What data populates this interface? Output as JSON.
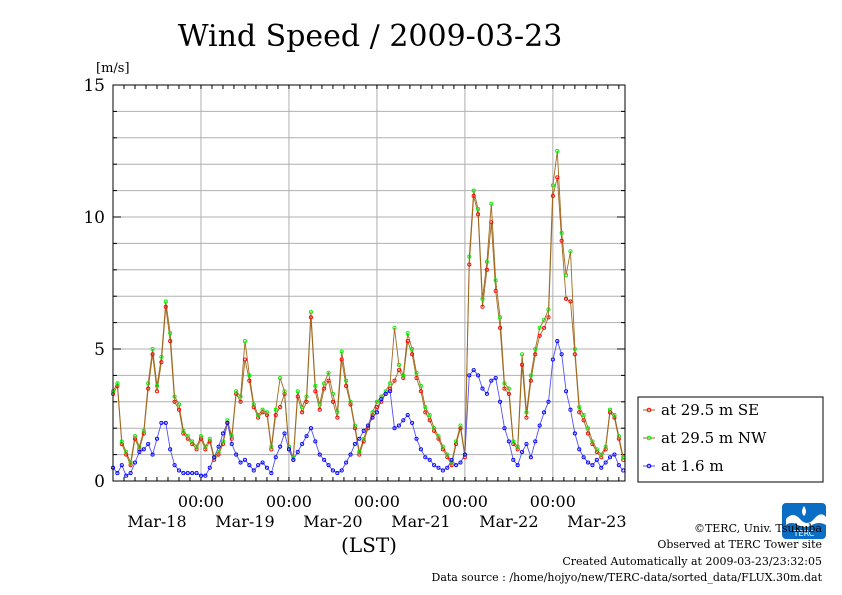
{
  "chart_data": {
    "type": "line",
    "title": "Wind Speed / 2009-03-23",
    "ylabel": "[m/s]",
    "xlabel": "(LST)",
    "ylim": [
      0,
      15
    ],
    "yticks": [
      0,
      5,
      10,
      15
    ],
    "xlim": [
      0,
      5.82
    ],
    "x_tick_time": "00:00",
    "x_tick_dates": [
      "Mar-18",
      "Mar-19",
      "Mar-20",
      "Mar-21",
      "Mar-22",
      "Mar-23"
    ],
    "grid": true,
    "legend_position": "right",
    "series": [
      {
        "name": "at 29.5 m SE",
        "color": "#ff0000",
        "line_color": "#a06a20",
        "x": [
          0,
          0.05,
          0.1,
          0.15,
          0.2,
          0.25,
          0.3,
          0.35,
          0.4,
          0.45,
          0.5,
          0.55,
          0.6,
          0.65,
          0.7,
          0.75,
          0.8,
          0.85,
          0.9,
          0.95,
          1.0,
          1.05,
          1.1,
          1.15,
          1.2,
          1.25,
          1.3,
          1.35,
          1.4,
          1.45,
          1.5,
          1.55,
          1.6,
          1.65,
          1.7,
          1.75,
          1.8,
          1.85,
          1.9,
          1.95,
          2.0,
          2.05,
          2.1,
          2.15,
          2.2,
          2.25,
          2.3,
          2.35,
          2.4,
          2.45,
          2.5,
          2.55,
          2.6,
          2.65,
          2.7,
          2.75,
          2.8,
          2.85,
          2.9,
          2.95,
          3.0,
          3.05,
          3.1,
          3.15,
          3.2,
          3.25,
          3.3,
          3.35,
          3.4,
          3.45,
          3.5,
          3.55,
          3.6,
          3.65,
          3.7,
          3.75,
          3.8,
          3.85,
          3.9,
          3.95,
          4.0,
          4.05,
          4.1,
          4.15,
          4.2,
          4.25,
          4.3,
          4.35,
          4.4,
          4.45,
          4.5,
          4.55,
          4.6,
          4.65,
          4.7,
          4.75,
          4.8,
          4.85,
          4.9,
          4.95,
          5.0,
          5.05,
          5.1,
          5.15,
          5.2,
          5.25,
          5.3,
          5.35,
          5.4,
          5.45,
          5.5,
          5.55,
          5.6,
          5.65,
          5.7,
          5.75,
          5.8
        ],
        "y": [
          3.3,
          3.6,
          1.4,
          1.0,
          0.6,
          1.6,
          1.2,
          1.8,
          3.5,
          4.8,
          3.4,
          4.5,
          6.6,
          5.3,
          3.0,
          2.7,
          1.8,
          1.6,
          1.4,
          1.2,
          1.6,
          1.2,
          1.5,
          0.8,
          1.0,
          1.4,
          2.2,
          1.6,
          3.3,
          3.0,
          4.6,
          3.8,
          2.8,
          2.4,
          2.6,
          2.5,
          1.2,
          2.5,
          2.8,
          3.3,
          1.2,
          0.8,
          3.2,
          2.6,
          3.0,
          6.2,
          3.4,
          2.7,
          3.5,
          3.8,
          3.0,
          2.4,
          4.6,
          3.6,
          2.9,
          2.0,
          1.0,
          1.5,
          2.0,
          2.5,
          2.8,
          3.0,
          3.3,
          3.5,
          3.8,
          4.2,
          3.9,
          5.3,
          4.8,
          3.9,
          3.4,
          2.6,
          2.3,
          1.9,
          1.6,
          1.2,
          0.9,
          0.6,
          1.4,
          2.0,
          0.9,
          8.2,
          10.8,
          10.1,
          6.6,
          8.0,
          9.8,
          7.2,
          5.8,
          3.5,
          3.3,
          1.4,
          1.2,
          4.4,
          2.4,
          3.8,
          4.8,
          5.5,
          5.8,
          6.2,
          10.8,
          11.5,
          9.1,
          6.9,
          6.8,
          4.8,
          2.6,
          2.3,
          1.8,
          1.4,
          1.1,
          0.9,
          1.2,
          2.6,
          2.4,
          1.6,
          0.8
        ],
        "point_color": "#ff0000"
      },
      {
        "name": "at 29.5 m NW",
        "color": "#00ee00",
        "line_color": "#a06a20",
        "x": [
          0,
          0.05,
          0.1,
          0.15,
          0.2,
          0.25,
          0.3,
          0.35,
          0.4,
          0.45,
          0.5,
          0.55,
          0.6,
          0.65,
          0.7,
          0.75,
          0.8,
          0.85,
          0.9,
          0.95,
          1.0,
          1.05,
          1.1,
          1.15,
          1.2,
          1.25,
          1.3,
          1.35,
          1.4,
          1.45,
          1.5,
          1.55,
          1.6,
          1.65,
          1.7,
          1.75,
          1.8,
          1.85,
          1.9,
          1.95,
          2.0,
          2.05,
          2.1,
          2.15,
          2.2,
          2.25,
          2.3,
          2.35,
          2.4,
          2.45,
          2.5,
          2.55,
          2.6,
          2.65,
          2.7,
          2.75,
          2.8,
          2.85,
          2.9,
          2.95,
          3.0,
          3.05,
          3.1,
          3.15,
          3.2,
          3.25,
          3.3,
          3.35,
          3.4,
          3.45,
          3.5,
          3.55,
          3.6,
          3.65,
          3.7,
          3.75,
          3.8,
          3.85,
          3.9,
          3.95,
          4.0,
          4.05,
          4.1,
          4.15,
          4.2,
          4.25,
          4.3,
          4.35,
          4.4,
          4.45,
          4.5,
          4.55,
          4.6,
          4.65,
          4.7,
          4.75,
          4.8,
          4.85,
          4.9,
          4.95,
          5.0,
          5.05,
          5.1,
          5.15,
          5.2,
          5.25,
          5.3,
          5.35,
          5.4,
          5.45,
          5.5,
          5.55,
          5.6,
          5.65,
          5.7,
          5.75,
          5.8
        ],
        "y": [
          3.4,
          3.7,
          1.5,
          1.1,
          0.7,
          1.7,
          1.3,
          1.9,
          3.7,
          5.0,
          3.6,
          4.7,
          6.8,
          5.6,
          3.2,
          2.9,
          1.9,
          1.7,
          1.5,
          1.3,
          1.7,
          1.3,
          1.6,
          0.9,
          1.1,
          1.5,
          2.3,
          1.7,
          3.4,
          3.2,
          5.3,
          4.0,
          2.9,
          2.5,
          2.7,
          2.6,
          1.3,
          2.7,
          3.9,
          3.4,
          1.3,
          0.9,
          3.4,
          2.8,
          3.2,
          6.4,
          3.6,
          2.9,
          3.7,
          4.1,
          3.3,
          2.6,
          4.9,
          3.8,
          3.0,
          2.1,
          1.1,
          1.6,
          2.1,
          2.6,
          3.0,
          3.2,
          3.4,
          3.7,
          5.8,
          4.4,
          4.0,
          5.6,
          5.0,
          4.1,
          3.6,
          2.8,
          2.5,
          2.0,
          1.7,
          1.3,
          1.0,
          0.7,
          1.5,
          2.1,
          1.0,
          8.5,
          11.0,
          10.3,
          6.9,
          8.3,
          10.5,
          7.6,
          6.2,
          3.7,
          3.5,
          1.5,
          1.3,
          4.8,
          2.6,
          4.0,
          5.0,
          5.8,
          6.1,
          6.5,
          11.2,
          12.5,
          9.4,
          7.8,
          8.7,
          5.0,
          2.8,
          2.5,
          2.0,
          1.5,
          1.2,
          1.0,
          1.3,
          2.7,
          2.5,
          1.7,
          0.9
        ],
        "point_color": "#00ee00"
      },
      {
        "name": "at 1.6 m",
        "color": "#0000ff",
        "line_color": "#5050ff",
        "x": [
          0,
          0.05,
          0.1,
          0.15,
          0.2,
          0.25,
          0.3,
          0.35,
          0.4,
          0.45,
          0.5,
          0.55,
          0.6,
          0.65,
          0.7,
          0.75,
          0.8,
          0.85,
          0.9,
          0.95,
          1.0,
          1.05,
          1.1,
          1.15,
          1.2,
          1.25,
          1.3,
          1.35,
          1.4,
          1.45,
          1.5,
          1.55,
          1.6,
          1.65,
          1.7,
          1.75,
          1.8,
          1.85,
          1.9,
          1.95,
          2.0,
          2.05,
          2.1,
          2.15,
          2.2,
          2.25,
          2.3,
          2.35,
          2.4,
          2.45,
          2.5,
          2.55,
          2.6,
          2.65,
          2.7,
          2.75,
          2.8,
          2.85,
          2.9,
          2.95,
          3.0,
          3.05,
          3.1,
          3.15,
          3.2,
          3.25,
          3.3,
          3.35,
          3.4,
          3.45,
          3.5,
          3.55,
          3.6,
          3.65,
          3.7,
          3.75,
          3.8,
          3.85,
          3.9,
          3.95,
          4.0,
          4.05,
          4.1,
          4.15,
          4.2,
          4.25,
          4.3,
          4.35,
          4.4,
          4.45,
          4.5,
          4.55,
          4.6,
          4.65,
          4.7,
          4.75,
          4.8,
          4.85,
          4.9,
          4.95,
          5.0,
          5.05,
          5.1,
          5.15,
          5.2,
          5.25,
          5.3,
          5.35,
          5.4,
          5.45,
          5.5,
          5.55,
          5.6,
          5.65,
          5.7,
          5.75,
          5.8
        ],
        "y": [
          0.5,
          0.3,
          0.6,
          0.2,
          0.3,
          0.7,
          1.1,
          1.2,
          1.4,
          1.0,
          1.6,
          2.2,
          2.2,
          1.2,
          0.6,
          0.4,
          0.3,
          0.3,
          0.3,
          0.3,
          0.2,
          0.2,
          0.5,
          0.9,
          1.3,
          1.8,
          2.2,
          1.4,
          1.0,
          0.7,
          0.8,
          0.6,
          0.4,
          0.6,
          0.7,
          0.5,
          0.3,
          0.9,
          1.3,
          1.8,
          1.2,
          0.8,
          1.1,
          1.4,
          1.7,
          2.0,
          1.5,
          1.0,
          0.8,
          0.6,
          0.4,
          0.3,
          0.4,
          0.7,
          1.0,
          1.4,
          1.6,
          1.9,
          2.1,
          2.4,
          2.6,
          3.1,
          3.3,
          3.4,
          2.0,
          2.1,
          2.3,
          2.5,
          2.2,
          1.6,
          1.2,
          0.9,
          0.8,
          0.6,
          0.5,
          0.4,
          0.5,
          0.8,
          0.6,
          0.7,
          1.0,
          4.0,
          4.2,
          4.0,
          3.5,
          3.3,
          3.8,
          3.9,
          3.0,
          2.0,
          1.5,
          0.8,
          0.6,
          1.1,
          1.4,
          0.9,
          1.5,
          2.1,
          2.6,
          3.0,
          4.6,
          5.3,
          4.8,
          3.4,
          2.7,
          1.8,
          1.2,
          0.9,
          0.7,
          0.6,
          0.8,
          0.5,
          0.7,
          0.9,
          1.0,
          0.6,
          0.4
        ],
        "point_color": "#0000ff"
      }
    ]
  },
  "footer": {
    "copyright": "©TERC, Univ. Tsukuba",
    "observed": "Observed at TERC Tower site",
    "created": "Created Automatically at 2009-03-23/23:32:05",
    "source": "Data source : /home/hojyo/new/TERC-data/sorted_data/FLUX.30m.dat",
    "logo_text": "TERC"
  }
}
